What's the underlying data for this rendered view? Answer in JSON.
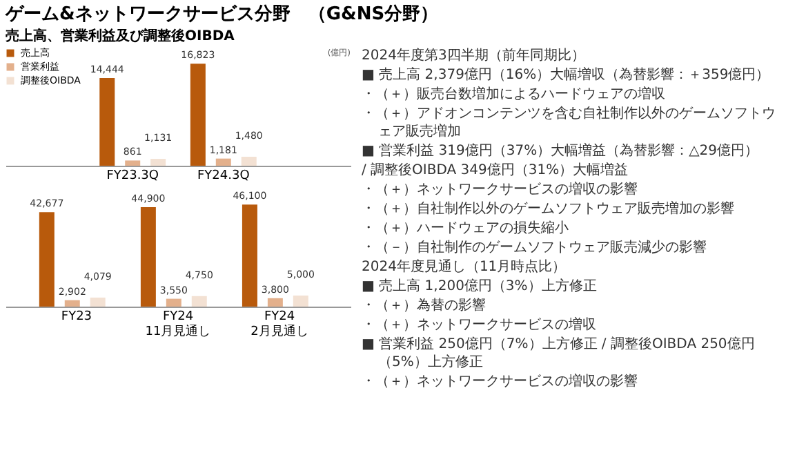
{
  "chart_data": [
    {
      "type": "bar",
      "title": "ゲーム&ネットワークサービス分野　（G&NS分野）",
      "subtitle": "売上高、営業利益及び調整後OIBDA",
      "annotations": [
        "(億円)"
      ],
      "categories": [
        "FY23.3Q",
        "FY24.3Q"
      ],
      "legend": "top left",
      "series": [
        {
          "name": "売上高",
          "color": "#b85a0c",
          "values": [
            14444,
            16823
          ],
          "value_labels": [
            "14,444",
            "16,823"
          ]
        },
        {
          "name": "営業利益",
          "color": "#e3b08c",
          "values": [
            861,
            1181
          ],
          "value_labels": [
            "861",
            "1,181"
          ]
        },
        {
          "name": "調整後OIBDA",
          "color": "#f3e1d3",
          "values": [
            1131,
            1480
          ],
          "value_labels": [
            "1,131",
            "1,480"
          ]
        }
      ]
    },
    {
      "type": "bar",
      "categories": [
        "FY23",
        "FY24 11月見通し",
        "FY24 2月見通し"
      ],
      "series": [
        {
          "name": "売上高",
          "color": "#b85a0c",
          "values": [
            42677,
            44900,
            46100
          ],
          "value_labels": [
            "42,677",
            "44,900",
            "46,100"
          ]
        },
        {
          "name": "営業利益",
          "color": "#e3b08c",
          "values": [
            2902,
            3550,
            3800
          ],
          "value_labels": [
            "2,902",
            "3,550",
            "3,800"
          ]
        },
        {
          "name": "調整後OIBDA",
          "color": "#f3e1d3",
          "values": [
            4079,
            4750,
            5000
          ],
          "value_labels": [
            "4,079",
            "4,750",
            "5,000"
          ]
        }
      ]
    },
    {
      "type": "other",
      "annotations": [
        "2024年度第3四半期（前年同期比）",
        "■ 売上高 2,379億円（16%）大幅増収（為替影響：＋359億円）",
        "・（＋）販売台数増加によるハードウェアの増収",
        "・（＋）アドオンコンテンツを含む自社制作以外のゲームソフトウェア販売増加",
        "■ 営業利益 319億円（37%）大幅増益（為替影響：△29億円）",
        "/ 調整後OIBDA 349億円（31%）大幅増益",
        "・（＋）ネットワークサービスの増収の影響",
        "・（＋）自社制作以外のゲームソフトウェア販売増加の影響",
        "・（＋）ハードウェアの損失縮小",
        "・（－）自社制作のゲームソフトウェア販売減少の影響",
        "2024年度見通し（11月時点比）",
        "■ 売上高 1,200億円（3%）上方修正",
        "・（＋）為替の影響",
        "・（＋）ネットワークサービスの増収",
        "■ 営業利益 250億円（7%）上方修正 / 調整後OIBDA 250億円（5%）上方修正",
        "・（＋）ネットワークサービスの増収の影響"
      ]
    }
  ]
}
